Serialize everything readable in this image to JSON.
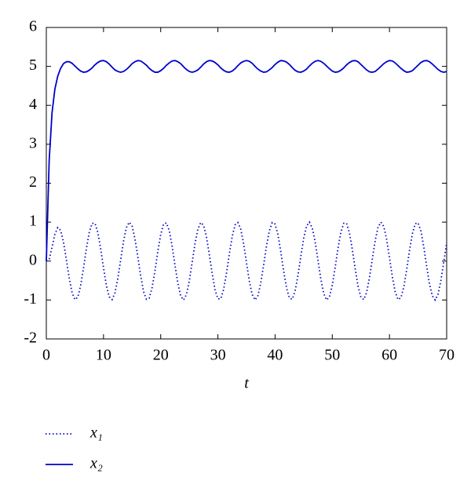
{
  "chart_data": {
    "type": "line",
    "xlabel": "t",
    "legend": "bottom",
    "xlim": [
      0,
      70
    ],
    "ylim": [
      -2,
      6
    ],
    "xticks": [
      0,
      10,
      20,
      30,
      40,
      50,
      60,
      70
    ],
    "yticks": [
      -2,
      -1,
      0,
      1,
      2,
      3,
      4,
      5,
      6
    ],
    "x": [
      0,
      0.5,
      1,
      1.5,
      2,
      2.5,
      3,
      3.5,
      4,
      4.5,
      5,
      5.5,
      6,
      6.5,
      7,
      7.5,
      8,
      8.5,
      9,
      9.5,
      10,
      10.5,
      11,
      11.5,
      12,
      12.5,
      13,
      13.5,
      14,
      14.5,
      15,
      15.5,
      16,
      16.5,
      17,
      17.5,
      18,
      18.5,
      19,
      19.5,
      20,
      20.5,
      21,
      21.5,
      22,
      22.5,
      23,
      23.5,
      24,
      24.5,
      25,
      25.5,
      26,
      26.5,
      27,
      27.5,
      28,
      28.5,
      29,
      29.5,
      30,
      30.5,
      31,
      31.5,
      32,
      32.5,
      33,
      33.5,
      34,
      34.5,
      35,
      35.5,
      36,
      36.5,
      37,
      37.5,
      38,
      38.5,
      39,
      39.5,
      40,
      40.5,
      41,
      41.5,
      42,
      42.5,
      43,
      43.5,
      44,
      44.5,
      45,
      45.5,
      46,
      46.5,
      47,
      47.5,
      48,
      48.5,
      49,
      49.5,
      50,
      50.5,
      51,
      51.5,
      52,
      52.5,
      53,
      53.5,
      54,
      54.5,
      55,
      55.5,
      56,
      56.5,
      57,
      57.5,
      58,
      58.5,
      59,
      59.5,
      60,
      60.5,
      61,
      61.5,
      62,
      62.5,
      63,
      63.5,
      64,
      64.5,
      65,
      65.5,
      66,
      66.5,
      67,
      67.5,
      68,
      68.5,
      69,
      69.5,
      70
    ],
    "series": [
      {
        "name": "x₁",
        "color": "#0000cc",
        "style": "dotted",
        "values": [
          0,
          0.04,
          0.36,
          0.69,
          0.86,
          0.79,
          0.49,
          0.04,
          -0.43,
          -0.81,
          -0.99,
          -0.93,
          -0.63,
          -0.18,
          0.31,
          0.73,
          0.97,
          0.97,
          0.74,
          0.32,
          -0.17,
          -0.63,
          -0.92,
          -0.99,
          -0.82,
          -0.45,
          0.03,
          0.51,
          0.86,
          1.0,
          0.9,
          0.57,
          0.11,
          -0.38,
          -0.78,
          -0.98,
          -0.95,
          -0.68,
          -0.25,
          0.25,
          0.68,
          0.95,
          0.98,
          0.78,
          0.38,
          -0.11,
          -0.57,
          -0.9,
          -1.0,
          -0.86,
          -0.51,
          -0.03,
          0.45,
          0.82,
          0.99,
          0.92,
          0.62,
          0.17,
          -0.32,
          -0.74,
          -0.97,
          -0.97,
          -0.73,
          -0.31,
          0.18,
          0.63,
          0.93,
          0.99,
          0.82,
          0.44,
          -0.04,
          -0.52,
          -0.86,
          -1.0,
          -0.89,
          -0.56,
          -0.1,
          0.39,
          0.78,
          0.99,
          0.95,
          0.68,
          0.24,
          -0.26,
          -0.69,
          -0.95,
          -0.98,
          -0.77,
          -0.37,
          0.12,
          0.58,
          0.9,
          1.0,
          0.85,
          0.5,
          0.02,
          -0.46,
          -0.83,
          -1.0,
          -0.92,
          -0.62,
          -0.17,
          0.33,
          0.74,
          0.97,
          0.97,
          0.72,
          0.3,
          -0.19,
          -0.64,
          -0.93,
          -0.99,
          -0.81,
          -0.43,
          0.05,
          0.52,
          0.87,
          1.0,
          0.89,
          0.56,
          0.09,
          -0.4,
          -0.79,
          -0.99,
          -0.94,
          -0.67,
          -0.23,
          0.27,
          0.7,
          0.96,
          0.98,
          0.77,
          0.36,
          -0.13,
          -0.59,
          -0.9,
          -1.0,
          -0.85,
          -0.49,
          -0.02,
          0.47
        ]
      },
      {
        "name": "x₂",
        "color": "#0000cc",
        "style": "solid",
        "values": [
          0,
          2.58,
          3.81,
          4.42,
          4.75,
          4.95,
          5.07,
          5.12,
          5.12,
          5.08,
          5.01,
          4.94,
          4.88,
          4.85,
          4.86,
          4.9,
          4.96,
          5.04,
          5.1,
          5.14,
          5.15,
          5.12,
          5.06,
          4.98,
          4.91,
          4.87,
          4.85,
          4.87,
          4.92,
          4.99,
          5.07,
          5.12,
          5.15,
          5.14,
          5.09,
          5.03,
          4.95,
          4.89,
          4.85,
          4.85,
          4.89,
          4.95,
          5.03,
          5.09,
          5.14,
          5.15,
          5.12,
          5.07,
          4.99,
          4.92,
          4.87,
          4.85,
          4.87,
          4.91,
          4.98,
          5.06,
          5.12,
          5.15,
          5.14,
          5.1,
          5.04,
          4.96,
          4.9,
          4.86,
          4.85,
          4.88,
          4.94,
          5.02,
          5.09,
          5.13,
          5.15,
          5.13,
          5.08,
          5.0,
          4.93,
          4.88,
          4.85,
          4.86,
          4.91,
          4.97,
          5.05,
          5.11,
          5.15,
          5.14,
          5.11,
          5.05,
          4.97,
          4.9,
          4.86,
          4.85,
          4.88,
          4.93,
          5.01,
          5.08,
          5.13,
          5.15,
          5.13,
          5.08,
          5.01,
          4.94,
          4.88,
          4.85,
          4.86,
          4.9,
          4.96,
          5.04,
          5.1,
          5.14,
          5.15,
          5.12,
          5.05,
          4.98,
          4.91,
          4.86,
          4.85,
          4.87,
          4.93,
          5.0,
          5.07,
          5.12,
          5.15,
          5.14,
          5.09,
          5.02,
          4.95,
          4.89,
          4.85,
          4.86,
          4.89,
          4.96,
          5.03,
          5.1,
          5.14,
          5.15,
          5.12,
          5.06,
          4.99,
          4.92,
          4.87,
          4.85,
          4.87
        ]
      }
    ]
  }
}
